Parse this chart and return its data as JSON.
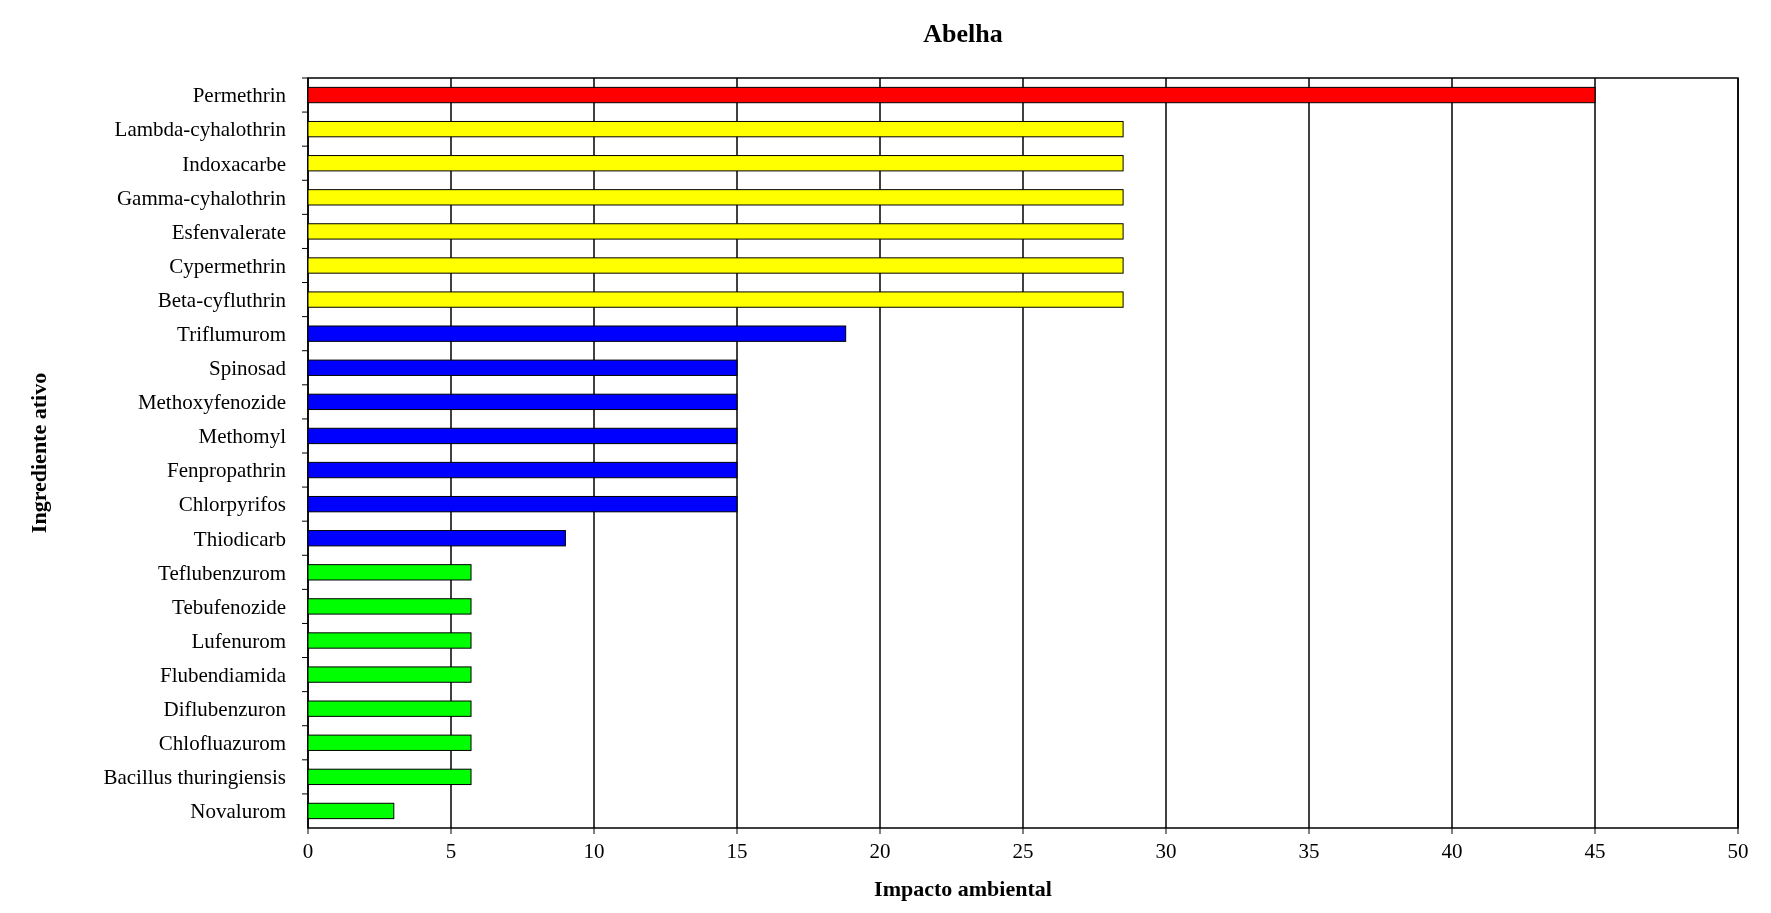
{
  "chart_data": {
    "type": "bar",
    "orientation": "horizontal",
    "title": "Abelha",
    "xlabel": "Impacto ambiental",
    "ylabel": "Ingrediente ativo",
    "categories": [
      "Permethrin",
      "Lambda-cyhalothrin",
      "Indoxacarbe",
      "Gamma-cyhalothrin",
      "Esfenvalerate",
      "Cypermethrin",
      "Beta-cyfluthrin",
      "Triflumurom",
      "Spinosad",
      "Methoxyfenozide",
      "Methomyl",
      "Fenpropathrin",
      "Chlorpyrifos",
      "Thiodicarb",
      "Teflubenzurom",
      "Tebufenozide",
      "Lufenurom",
      "Flubendiamida",
      "Diflubenzuron",
      "Chlofluazurom",
      "Bacillus thuringiensis",
      "Novalurom"
    ],
    "values": [
      45,
      28.5,
      28.5,
      28.5,
      28.5,
      28.5,
      28.5,
      18.8,
      15,
      15,
      15,
      15,
      15,
      9,
      5.7,
      5.7,
      5.7,
      5.7,
      5.7,
      5.7,
      5.7,
      3
    ],
    "colors": [
      "#ff0000",
      "#ffff00",
      "#ffff00",
      "#ffff00",
      "#ffff00",
      "#ffff00",
      "#ffff00",
      "#0000ff",
      "#0000ff",
      "#0000ff",
      "#0000ff",
      "#0000ff",
      "#0000ff",
      "#0000ff",
      "#00ff00",
      "#00ff00",
      "#00ff00",
      "#00ff00",
      "#00ff00",
      "#00ff00",
      "#00ff00",
      "#00ff00"
    ],
    "xlim": [
      0,
      50
    ],
    "xticks": [
      0,
      5,
      10,
      15,
      20,
      25,
      30,
      35,
      40,
      45,
      50
    ],
    "grid": "x"
  }
}
